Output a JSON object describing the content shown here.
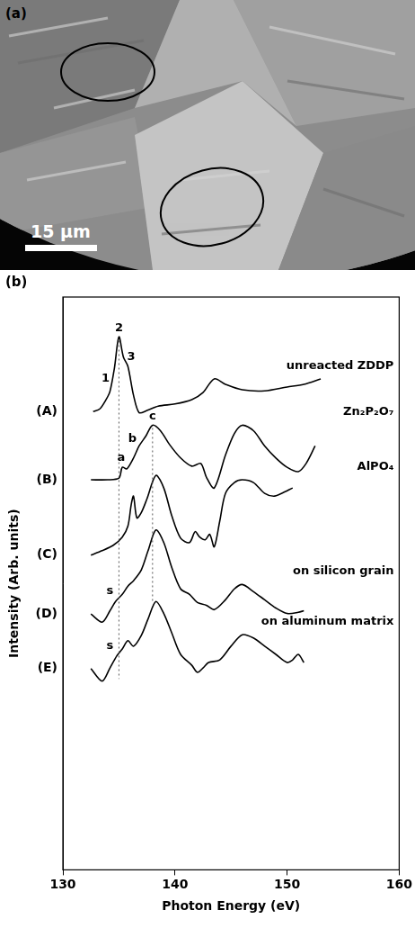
{
  "panel_a": {
    "label": "(a)",
    "scale_bar": "15 μm"
  },
  "chart_data": {
    "panel_label": "(b)",
    "type": "line",
    "x_label": "Photon Energy (eV)",
    "y_label": "Intensity (Arb. units)",
    "xlim": [
      130,
      160
    ],
    "xticks": [
      130,
      140,
      150,
      160
    ],
    "ylim": [
      0,
      10.5
    ],
    "tick_labels": "x",
    "grid": false,
    "series": [
      {
        "name": "unreacted ZDDP",
        "label": "(A)",
        "color": "#000000",
        "x": [
          132.7,
          133.3,
          133.8,
          134.2,
          134.6,
          135.0,
          135.4,
          135.8,
          136.3,
          136.8,
          137.5,
          138.5,
          140,
          141.5,
          142.5,
          143.5,
          144.5,
          146,
          148,
          150,
          151.5,
          153
        ],
        "values": [
          8.4,
          8.45,
          8.6,
          8.77,
          9.2,
          9.77,
          9.4,
          9.23,
          8.7,
          8.38,
          8.42,
          8.5,
          8.54,
          8.62,
          8.75,
          9.0,
          8.9,
          8.8,
          8.78,
          8.85,
          8.9,
          9.0
        ]
      },
      {
        "name": "Zn₂P₂O₇",
        "label": "(B)",
        "color": "#000000",
        "x": [
          132.5,
          134,
          135,
          135.3,
          135.7,
          136.3,
          136.8,
          137.4,
          138,
          138.7,
          139.5,
          140.5,
          141.5,
          142.3,
          142.8,
          143.5,
          144.5,
          145.3,
          146,
          147,
          148,
          149,
          150,
          151,
          151.7,
          152.5
        ],
        "values": [
          7.15,
          7.15,
          7.18,
          7.38,
          7.35,
          7.55,
          7.77,
          7.95,
          8.15,
          8.05,
          7.8,
          7.55,
          7.4,
          7.45,
          7.2,
          7.0,
          7.6,
          8.0,
          8.15,
          8.05,
          7.77,
          7.55,
          7.38,
          7.3,
          7.45,
          7.77
        ]
      },
      {
        "name": "AlPO₄",
        "label": "(C)",
        "color": "#000000",
        "x": [
          132.5,
          133.5,
          134.5,
          135.3,
          135.8,
          136.1,
          136.3,
          136.6,
          137,
          137.5,
          138.3,
          139,
          139.7,
          140.5,
          141.3,
          141.8,
          142.2,
          142.7,
          143.1,
          143.5,
          144,
          144.5,
          145.3,
          146,
          147,
          148,
          148.8,
          149.5,
          150.5
        ],
        "values": [
          5.77,
          5.85,
          5.95,
          6.1,
          6.3,
          6.7,
          6.85,
          6.45,
          6.55,
          6.8,
          7.23,
          7.0,
          6.5,
          6.08,
          6.0,
          6.2,
          6.1,
          6.05,
          6.15,
          5.92,
          6.4,
          6.9,
          7.1,
          7.15,
          7.1,
          6.9,
          6.85,
          6.9,
          7.0
        ]
      },
      {
        "name": "on silicon grain",
        "label": "(D)",
        "color": "#000000",
        "x": [
          132.5,
          133.5,
          134.2,
          134.7,
          135.3,
          135.8,
          136.3,
          137,
          137.6,
          138.3,
          139,
          139.7,
          140.5,
          141.3,
          142,
          142.8,
          143.5,
          144.5,
          145.3,
          146,
          147,
          148,
          149,
          150,
          151,
          151.5
        ],
        "values": [
          4.69,
          4.54,
          4.75,
          4.92,
          5.05,
          5.2,
          5.3,
          5.5,
          5.85,
          6.23,
          6.0,
          5.55,
          5.15,
          5.05,
          4.9,
          4.85,
          4.77,
          4.95,
          5.15,
          5.23,
          5.1,
          4.95,
          4.8,
          4.7,
          4.72,
          4.75
        ]
      },
      {
        "name": "on aluminum matrix",
        "label": "(E)",
        "color": "#000000",
        "x": [
          132.5,
          133.5,
          134.2,
          134.8,
          135.3,
          135.8,
          136.3,
          137,
          137.6,
          138.3,
          139,
          139.7,
          140.5,
          141.5,
          142,
          142.5,
          143,
          144,
          145,
          146,
          147,
          148,
          149,
          150,
          150.5,
          151,
          151.5
        ],
        "values": [
          3.69,
          3.46,
          3.7,
          3.92,
          4.05,
          4.2,
          4.1,
          4.3,
          4.6,
          4.92,
          4.7,
          4.35,
          3.95,
          3.75,
          3.62,
          3.7,
          3.8,
          3.85,
          4.1,
          4.31,
          4.25,
          4.1,
          3.95,
          3.8,
          3.85,
          3.95,
          3.8
        ]
      }
    ],
    "annotations": [
      {
        "text": "1",
        "x": 133.8,
        "y": 8.9
      },
      {
        "text": "2",
        "x": 135.0,
        "y": 9.82
      },
      {
        "text": "3",
        "x": 136.1,
        "y": 9.3
      },
      {
        "text": "a",
        "x": 135.2,
        "y": 7.45
      },
      {
        "text": "b",
        "x": 136.2,
        "y": 7.8
      },
      {
        "text": "c",
        "x": 138.0,
        "y": 8.2
      },
      {
        "text": "s",
        "x": 134.2,
        "y": 5.0
      },
      {
        "text": "s",
        "x": 134.2,
        "y": 4.0
      }
    ],
    "reference_lines": [
      {
        "x": 135,
        "y": [
          3.5,
          9.7
        ]
      },
      {
        "x": 138,
        "y": [
          4.9,
          8.1
        ]
      }
    ]
  }
}
